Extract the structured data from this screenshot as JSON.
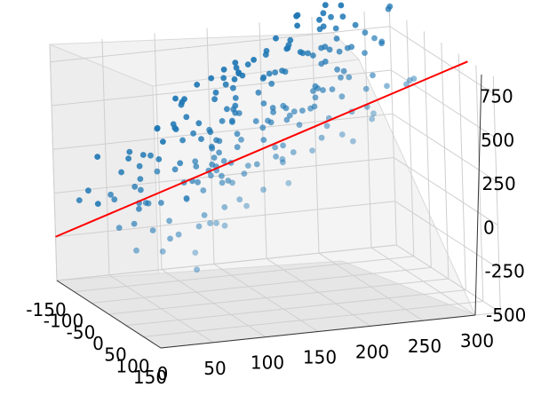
{
  "chart_data": {
    "type": "scatter",
    "title": "",
    "xlabel": "",
    "ylabel": "",
    "zlabel": "",
    "grid": true,
    "colors": {
      "points": "#1f77b4",
      "line": "#ff0000"
    },
    "axes": {
      "x": {
        "ticks": [
          "-150",
          "-100",
          "-50",
          "0",
          "50",
          "100",
          "150"
        ],
        "range": [
          -150,
          150
        ]
      },
      "y": {
        "ticks": [
          "0",
          "50",
          "100",
          "150",
          "200",
          "250",
          "300"
        ],
        "range": [
          0,
          300
        ]
      },
      "z": {
        "ticks": [
          "-500",
          "-250",
          "0",
          "250",
          "500",
          "750"
        ],
        "range": [
          -500,
          850
        ]
      }
    },
    "points": [
      [
        -86,
        3,
        39
      ],
      [
        62,
        8,
        -61
      ],
      [
        87,
        25,
        -45
      ],
      [
        1,
        12,
        -12
      ],
      [
        -52,
        22,
        103
      ],
      [
        -134,
        37,
        205
      ],
      [
        -28,
        41,
        74
      ],
      [
        -61,
        48,
        121
      ],
      [
        35,
        33,
        4
      ],
      [
        -57,
        27,
        66
      ],
      [
        -34,
        61,
        234
      ],
      [
        -102,
        17,
        65
      ],
      [
        -79,
        59,
        208
      ],
      [
        -7,
        29,
        -10
      ],
      [
        64,
        48,
        8
      ],
      [
        -96,
        47,
        159
      ],
      [
        31,
        91,
        276
      ],
      [
        3,
        113,
        309
      ],
      [
        75,
        64,
        59
      ],
      [
        -98,
        56,
        267
      ],
      [
        -56,
        52,
        106
      ],
      [
        130,
        42,
        -7
      ],
      [
        -98,
        69,
        242
      ],
      [
        -108,
        58,
        215
      ],
      [
        -20,
        45,
        83
      ],
      [
        -119,
        90,
        355
      ],
      [
        105,
        71,
        112
      ],
      [
        98,
        96,
        222
      ],
      [
        -27,
        84,
        166
      ],
      [
        41,
        47,
        57
      ],
      [
        -86,
        72,
        252
      ],
      [
        -112,
        111,
        484
      ],
      [
        102,
        66,
        110
      ],
      [
        -14,
        114,
        335
      ],
      [
        -110,
        166,
        631
      ],
      [
        -53,
        140,
        443
      ],
      [
        81,
        87,
        162
      ],
      [
        -79,
        111,
        363
      ],
      [
        -4,
        106,
        324
      ],
      [
        117,
        75,
        110
      ],
      [
        -107,
        114,
        419
      ],
      [
        -134,
        119,
        466
      ],
      [
        -83,
        102,
        324
      ],
      [
        -130,
        120,
        488
      ],
      [
        -5,
        90,
        192
      ],
      [
        -112,
        103,
        378
      ],
      [
        -47,
        116,
        421
      ],
      [
        38,
        105,
        247
      ],
      [
        39,
        99,
        240
      ],
      [
        49,
        147,
        425
      ],
      [
        -78,
        152,
        541
      ],
      [
        52,
        116,
        298
      ],
      [
        -62,
        146,
        480
      ],
      [
        57,
        145,
        384
      ],
      [
        -106,
        141,
        505
      ],
      [
        -40,
        123,
        362
      ],
      [
        -14,
        107,
        271
      ],
      [
        -135,
        134,
        555
      ],
      [
        17,
        101,
        281
      ],
      [
        -114,
        145,
        530
      ],
      [
        -22,
        110,
        351
      ],
      [
        -136,
        148,
        582
      ],
      [
        0,
        127,
        376
      ],
      [
        -121,
        155,
        598
      ],
      [
        -138,
        172,
        653
      ],
      [
        -129,
        170,
        637
      ],
      [
        -97,
        156,
        571
      ],
      [
        -64,
        134,
        438
      ],
      [
        -64,
        182,
        622
      ],
      [
        45,
        156,
        425
      ],
      [
        -7,
        159,
        498
      ],
      [
        5,
        201,
        620
      ],
      [
        -16,
        177,
        560
      ],
      [
        -14,
        179,
        548
      ],
      [
        -112,
        193,
        719
      ],
      [
        -10,
        155,
        457
      ],
      [
        -18,
        168,
        527
      ],
      [
        12,
        215,
        667
      ],
      [
        79,
        226,
        646
      ],
      [
        -15,
        210,
        641
      ],
      [
        -74,
        189,
        669
      ],
      [
        80,
        211,
        629
      ],
      [
        0,
        210,
        650
      ],
      [
        10,
        179,
        560
      ],
      [
        115,
        200,
        512
      ],
      [
        -110,
        193,
        743
      ],
      [
        -72,
        198,
        670
      ],
      [
        -137,
        211,
        769
      ],
      [
        -30,
        219,
        756
      ],
      [
        -85,
        187,
        649
      ],
      [
        -71,
        177,
        653
      ],
      [
        68,
        193,
        587
      ],
      [
        7,
        225,
        721
      ],
      [
        -60,
        229,
        802
      ],
      [
        -100,
        209,
        758
      ],
      [
        82,
        181,
        501
      ],
      [
        82,
        263,
        756
      ],
      [
        71,
        248,
        741
      ],
      [
        -61,
        233,
        805
      ],
      [
        -146,
        234,
        870
      ],
      [
        -42,
        252,
        817
      ],
      [
        -18,
        230,
        732
      ],
      [
        -106,
        243,
        841
      ],
      [
        -122,
        252,
        907
      ],
      [
        -107,
        247,
        853
      ],
      [
        -38,
        264,
        896
      ],
      [
        19,
        229,
        736
      ],
      [
        -86,
        252,
        866
      ],
      [
        83,
        266,
        778
      ],
      [
        -17,
        266,
        890
      ],
      [
        -13,
        255,
        818
      ],
      [
        -145,
        282,
        992
      ],
      [
        -140,
        260,
        925
      ],
      [
        -11,
        271,
        875
      ],
      [
        -65,
        297,
        990
      ],
      [
        -125,
        294,
        1010
      ],
      [
        96,
        54,
        -155
      ],
      [
        -60,
        51,
        -7
      ],
      [
        -28,
        62,
        62
      ],
      [
        -132,
        99,
        255
      ],
      [
        10,
        74,
        130
      ],
      [
        -118,
        31,
        -40
      ],
      [
        118,
        96,
        211
      ],
      [
        -2,
        107,
        275
      ],
      [
        -111,
        105,
        349
      ],
      [
        58,
        75,
        94
      ],
      [
        61,
        117,
        355
      ],
      [
        72,
        98,
        283
      ],
      [
        -112,
        154,
        573
      ],
      [
        80,
        144,
        381
      ],
      [
        -52,
        124,
        351
      ],
      [
        -93,
        82,
        215
      ],
      [
        -108,
        103,
        362
      ],
      [
        15,
        126,
        438
      ],
      [
        14,
        116,
        311
      ],
      [
        -24,
        135,
        416
      ],
      [
        -81,
        119,
        323
      ],
      [
        107,
        116,
        277
      ],
      [
        12,
        174,
        543
      ],
      [
        41,
        132,
        328
      ],
      [
        -26,
        111,
        356
      ],
      [
        -129,
        172,
        609
      ],
      [
        -16,
        165,
        473
      ],
      [
        -86,
        154,
        485
      ],
      [
        79,
        144,
        398
      ],
      [
        -73,
        177,
        643
      ],
      [
        7,
        150,
        412
      ],
      [
        12,
        186,
        563
      ],
      [
        -123,
        166,
        581
      ],
      [
        -141,
        162,
        616
      ],
      [
        112,
        191,
        552
      ],
      [
        75,
        156,
        425
      ],
      [
        129,
        133,
        332
      ],
      [
        -121,
        173,
        601
      ],
      [
        -61,
        144,
        503
      ],
      [
        -50,
        139,
        455
      ],
      [
        -28,
        171,
        537
      ],
      [
        -60,
        168,
        585
      ],
      [
        -116,
        177,
        668
      ],
      [
        21,
        191,
        584
      ],
      [
        36,
        175,
        520
      ],
      [
        -19,
        209,
        648
      ],
      [
        -103,
        223,
        727
      ],
      [
        11,
        198,
        578
      ],
      [
        -60,
        221,
        764
      ],
      [
        -78,
        222,
        753
      ],
      [
        -78,
        197,
        669
      ],
      [
        40,
        215,
        662
      ],
      [
        -109,
        214,
        765
      ],
      [
        117,
        218,
        630
      ],
      [
        -84,
        219,
        748
      ],
      [
        113,
        221,
        655
      ],
      [
        -14,
        235,
        725
      ],
      [
        -4,
        202,
        645
      ],
      [
        -141,
        233,
        823
      ],
      [
        -35,
        246,
        823
      ],
      [
        24,
        250,
        740
      ],
      [
        -47,
        242,
        790
      ],
      [
        50,
        235,
        706
      ],
      [
        -110,
        216,
        790
      ],
      [
        -60,
        244,
        846
      ],
      [
        -100,
        252,
        913
      ],
      [
        -99,
        263,
        910
      ],
      [
        -81,
        269,
        881
      ],
      [
        -51,
        291,
        997
      ],
      [
        80,
        271,
        780
      ],
      [
        -15,
        272,
        859
      ],
      [
        -134,
        273,
        923
      ],
      [
        -136,
        277,
        966
      ],
      [
        -9,
        102,
        246
      ],
      [
        32,
        83,
        197
      ],
      [
        -16,
        46,
        84
      ],
      [
        -14,
        91,
        299
      ],
      [
        -21,
        90,
        179
      ],
      [
        -126,
        92,
        341
      ],
      [
        35,
        66,
        162
      ],
      [
        -52,
        84,
        209
      ],
      [
        -72,
        57,
        145
      ],
      [
        51,
        44,
        -30
      ],
      [
        -72,
        125,
        371
      ],
      [
        16,
        106,
        245
      ],
      [
        -27,
        96,
        250
      ],
      [
        -71,
        95,
        213
      ],
      [
        -99,
        123,
        388
      ],
      [
        -147,
        117,
        471
      ],
      [
        -80,
        144,
        480
      ],
      [
        -44,
        144,
        503
      ],
      [
        -20,
        152,
        483
      ],
      [
        -36,
        165,
        556
      ],
      [
        109,
        163,
        474
      ],
      [
        80,
        187,
        563
      ],
      [
        12,
        171,
        520
      ],
      [
        -139,
        190,
        657
      ],
      [
        -109,
        213,
        748
      ],
      [
        -55,
        231,
        729
      ],
      [
        -139,
        233,
        886
      ],
      [
        -57,
        236,
        792
      ],
      [
        -125,
        249,
        867
      ]
    ],
    "line": [
      [
        -150,
        0,
        -250
      ],
      [
        150,
        300,
        950
      ]
    ]
  }
}
